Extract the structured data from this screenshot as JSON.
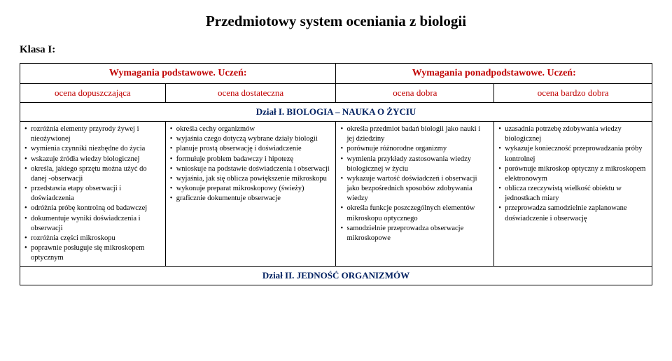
{
  "title": "Przedmiotowy system oceniania z biologii",
  "klasa": "Klasa I:",
  "headers": {
    "basic": "Wymagania podstawowe. Uczeń:",
    "extended": "Wymagania ponadpodstawowe. Uczeń:"
  },
  "grades": {
    "g1": "ocena dopuszczająca",
    "g2": "ocena dostateczna",
    "g3": "ocena dobra",
    "g4": "ocena bardzo dobra"
  },
  "section1": "Dział I. BIOLOGIA – NAUKA O ŻYCIU",
  "section2": "Dział II. JEDNOŚĆ ORGANIZMÓW",
  "colors": {
    "red": "#c00000",
    "navy": "#002060"
  },
  "cells": {
    "c1": [
      "rozróżnia elementy przyrody żywej i nieożywionej",
      "wymienia czynniki niezbędne do życia",
      "wskazuje źródła wiedzy biologicznej",
      "określa, jakiego sprzętu można użyć do danej -obserwacji",
      "przedstawia etapy obserwacji i doświadczenia",
      "odróżnia próbę kontrolną od badawczej",
      "dokumentuje wyniki doświadczenia i obserwacji",
      "rozróżnia części mikroskopu",
      "poprawnie posługuje się mikroskopem optycznym"
    ],
    "c2": [
      "określa cechy organizmów",
      "wyjaśnia czego dotyczą wybrane działy biologii",
      "planuje prostą obserwację i doświadczenie",
      "formułuje problem badawczy i hipotezę",
      "wnioskuje na podstawie doświadczenia i obserwacji",
      "wyjaśnia, jak się oblicza powiększenie mikroskopu",
      "wykonuje preparat mikroskopowy (świeży)",
      "graficznie dokumentuje obserwacje"
    ],
    "c3": [
      "określa przedmiot badań biologii jako nauki i jej dziedziny",
      "porównuje różnorodne organizmy",
      "wymienia przykłady zastosowania wiedzy biologicznej w życiu",
      "wykazuje wartość doświadczeń i obserwacji jako bezpośrednich sposobów zdobywania wiedzy",
      "określa funkcje poszczególnych elementów mikroskopu optycznego",
      "samodzielnie przeprowadza obserwacje mikroskopowe"
    ],
    "c4": [
      "uzasadnia potrzebę zdobywania wiedzy biologicznej",
      "wykazuje konieczność przeprowadzania próby kontrolnej",
      "porównuje mikroskop optyczny z mikroskopem elektronowym",
      "oblicza rzeczywistą wielkość obiektu w jednostkach miary",
      "przeprowadza samodzielnie zaplanowane doświadczenie i obserwację"
    ]
  }
}
